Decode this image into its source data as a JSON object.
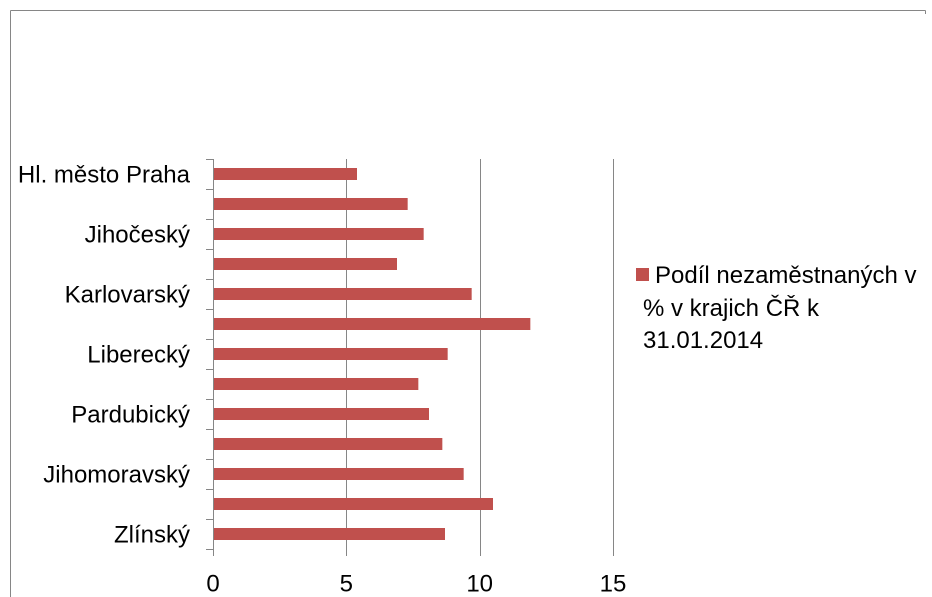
{
  "colors": {
    "gridline": "#868686",
    "axis": "#868686",
    "frame": "#868686",
    "text": "#000000",
    "background": "#FFFFFF"
  },
  "chart_data": {
    "type": "bar",
    "orientation": "horizontal",
    "categories": [
      "Hl. město Praha",
      "",
      "Jihočeský",
      "",
      "Karlovarský",
      "",
      "Liberecký",
      "",
      "Pardubický",
      "",
      "Jihomoravský",
      "",
      "Zlínský"
    ],
    "series": [
      {
        "name": "Podíl nezaměstnaných v % v krajich ČŘ k 31.01.2014",
        "values": [
          5.4,
          7.3,
          7.9,
          6.9,
          9.7,
          11.9,
          8.8,
          7.7,
          8.1,
          8.6,
          9.4,
          10.5,
          8.7
        ],
        "color": "#C0504D"
      }
    ],
    "xlim": [
      0,
      15
    ],
    "x_ticks": [
      0,
      5,
      10,
      15
    ],
    "grid": {
      "vertical": true,
      "horizontal": false
    },
    "legend": {
      "position": "right"
    }
  }
}
